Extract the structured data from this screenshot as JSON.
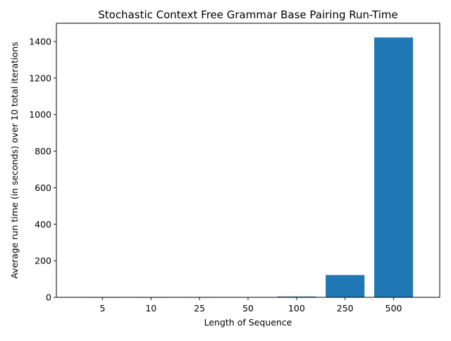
{
  "chart_data": {
    "type": "bar",
    "title": "Stochastic Context Free Grammar Base Pairing Run-Time",
    "xlabel": "Length of Sequence",
    "ylabel": "Average run time (in seconds) over 10 total iterations",
    "categories": [
      "5",
      "10",
      "25",
      "50",
      "100",
      "250",
      "500"
    ],
    "values": [
      0.01,
      0.02,
      0.15,
      0.6,
      4.5,
      122,
      1422
    ],
    "ylim": [
      0,
      1500
    ],
    "yticks": [
      0,
      200,
      400,
      600,
      800,
      1000,
      1200,
      1400
    ],
    "bar_color": "#1f77b4",
    "grid": false,
    "legend": "none"
  }
}
